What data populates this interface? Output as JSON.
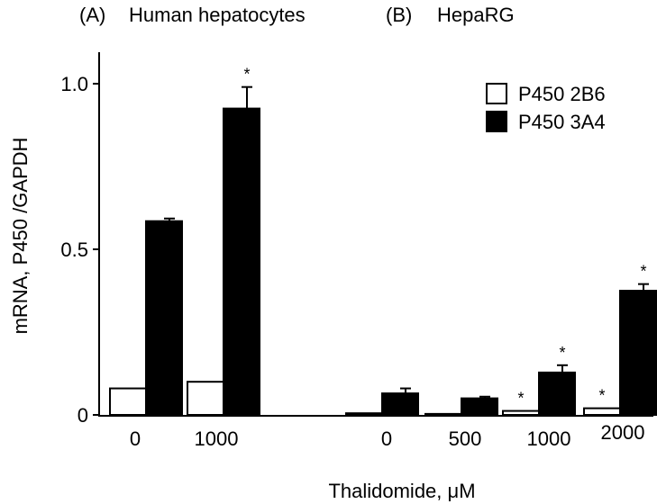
{
  "panels": [
    {
      "label": "(A)",
      "title": "Human hepatocytes"
    },
    {
      "label": "(B)",
      "title": "HepaRG"
    }
  ],
  "chart_data": {
    "type": "bar",
    "xlabel": "Thalidomide, μM",
    "ylabel": "mRNA, P450 /GAPDH",
    "ylim": [
      0,
      1.0
    ],
    "yticks": [
      0,
      0.5,
      1.0
    ],
    "ytick_labels": [
      "0",
      "0.5",
      "1.0"
    ],
    "legend_position": "top-right",
    "groups": [
      {
        "panel": "A",
        "category": "0"
      },
      {
        "panel": "A",
        "category": "1000"
      },
      {
        "panel": "B",
        "category": "0"
      },
      {
        "panel": "B",
        "category": "500"
      },
      {
        "panel": "B",
        "category": "1000"
      },
      {
        "panel": "B",
        "category": "2000"
      }
    ],
    "series": [
      {
        "name": "P450 2B6",
        "color": "#ffffff",
        "values": [
          0.08,
          0.1,
          0.005,
          0.003,
          0.012,
          0.02
        ],
        "errors": [
          0,
          0,
          0,
          0,
          0,
          0
        ],
        "significant": [
          false,
          false,
          false,
          false,
          true,
          true
        ]
      },
      {
        "name": "P450 3A4",
        "color": "#000000",
        "values": [
          0.585,
          0.925,
          0.065,
          0.05,
          0.128,
          0.375
        ],
        "errors": [
          0.008,
          0.065,
          0.015,
          0.005,
          0.022,
          0.02
        ],
        "significant": [
          false,
          true,
          false,
          false,
          true,
          true
        ]
      }
    ],
    "significance_marker": "*"
  }
}
